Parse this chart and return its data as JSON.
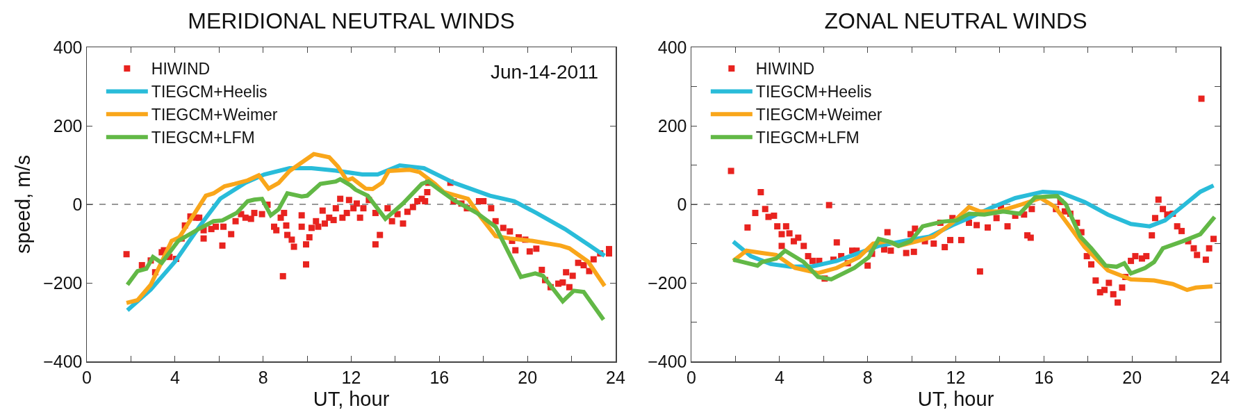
{
  "chart_data": [
    {
      "type": "line",
      "title": "MERIDIONAL NEUTRAL WINDS",
      "xlabel": "UT, hour",
      "ylabel": "speed, m/s",
      "annotations": [
        "Jun-14-2011"
      ],
      "legend": "top left",
      "grid": false,
      "xlim": [
        0,
        24
      ],
      "ylim": [
        -400,
        400
      ],
      "xticks": [
        0,
        {
          "value": 2,
          "label": null
        },
        4,
        {
          "value": 6,
          "label": null
        },
        8,
        {
          "value": 10,
          "label": null
        },
        12,
        {
          "value": 14,
          "label": null
        },
        16,
        {
          "value": 18,
          "label": null
        },
        20,
        {
          "value": 22,
          "label": null
        },
        24
      ],
      "yticks": [
        {
          "value": -400,
          "label": "−400"
        },
        {
          "value": -200,
          "label": "−200"
        },
        0,
        200,
        400
      ],
      "ref_lines": [
        {
          "axis": "y",
          "value": 0,
          "color": "#777777",
          "line_style": "dashed"
        }
      ],
      "series": [
        {
          "name": "HIWIND",
          "type": "scatter",
          "marker": "square",
          "color": "#e8231f",
          "x": [
            1.8,
            2.5,
            2.9,
            3.1,
            3.4,
            3.5,
            3.75,
            4.05,
            4.3,
            4.45,
            4.7,
            4.95,
            5.1,
            5.3,
            5.3,
            5.65,
            5.85,
            6.15,
            6.2,
            6.55,
            6.75,
            7.0,
            7.2,
            7.45,
            7.6,
            7.95,
            8.2,
            8.5,
            8.6,
            8.8,
            8.9,
            8.95,
            9.05,
            9.1,
            9.3,
            9.4,
            9.75,
            9.75,
            9.95,
            9.95,
            10.1,
            10.2,
            10.4,
            10.5,
            10.7,
            10.8,
            11.0,
            11.2,
            11.3,
            11.5,
            11.6,
            11.8,
            11.9,
            12.1,
            12.25,
            12.4,
            12.55,
            12.8,
            13.1,
            13.1,
            13.3,
            13.65,
            13.85,
            14.1,
            14.35,
            14.55,
            14.8,
            15.0,
            15.2,
            15.35,
            15.45,
            15.5,
            16.5,
            16.65,
            17.0,
            17.25,
            17.8,
            18.0,
            18.35,
            18.55,
            18.9,
            19.2,
            19.3,
            19.45,
            19.6,
            19.9,
            20.1,
            20.4,
            20.65,
            20.8,
            21.05,
            21.4,
            21.6,
            21.75,
            21.9,
            22.05,
            22.3,
            22.55,
            22.8,
            23.0,
            23.3,
            23.7,
            23.7
          ],
          "values": [
            -127,
            -155,
            -143,
            -173,
            -122,
            -117,
            -134,
            -139,
            -87,
            -54,
            -31,
            -34,
            -34,
            -87,
            -66,
            -63,
            -57,
            -105,
            -57,
            -76,
            -43,
            -25,
            -34,
            -37,
            -22,
            -25,
            -1,
            -57,
            -66,
            -34,
            -183,
            -22,
            -54,
            -78,
            -90,
            -108,
            -28,
            -57,
            -102,
            -153,
            -84,
            -60,
            -43,
            -57,
            -16,
            -49,
            -34,
            -40,
            -10,
            14,
            -34,
            -22,
            11,
            -10,
            2,
            -34,
            -10,
            11,
            -22,
            -102,
            -78,
            -10,
            -43,
            -25,
            -49,
            -19,
            -7,
            8,
            14,
            8,
            31,
            55,
            55,
            8,
            2,
            -10,
            8,
            8,
            -10,
            -43,
            -60,
            -69,
            -93,
            -117,
            -84,
            -90,
            -120,
            -113,
            -167,
            -193,
            -211,
            -202,
            -199,
            -173,
            -211,
            -182,
            -149,
            -155,
            -170,
            -140,
            -125,
            -114,
            -125
          ]
        },
        {
          "name": "TIEGCM+Heelis",
          "type": "line",
          "color": "#29bcd9",
          "x": [
            1.84,
            2.9,
            4.0,
            5.1,
            6.05,
            7.2,
            8.05,
            9.2,
            10.2,
            11.3,
            12.5,
            13.2,
            14.2,
            15.3,
            16.65,
            18.3,
            19.4,
            20.4,
            21.7,
            22.75,
            23.5
          ],
          "values": [
            -270,
            -217,
            -146,
            -57,
            14,
            55,
            76,
            92,
            92,
            86,
            76,
            76,
            99,
            92,
            55,
            22,
            8,
            -22,
            -63,
            -102,
            -131
          ]
        },
        {
          "name": "TIEGCM+Weimer",
          "type": "line",
          "color": "#f9a61a",
          "x": [
            1.8,
            2.3,
            2.9,
            3.85,
            4.2,
            5.4,
            5.75,
            6.25,
            6.7,
            7.3,
            7.8,
            8.25,
            8.7,
            9.2,
            10.3,
            11.0,
            11.4,
            11.8,
            12.05,
            12.65,
            12.97,
            13.4,
            13.7,
            14.65,
            15.1,
            15.8,
            16.2,
            16.65,
            17.3,
            17.9,
            18.55,
            19.2,
            20.2,
            21.5,
            21.9,
            22.75,
            23.5
          ],
          "values": [
            -251,
            -244,
            -205,
            -93,
            -84,
            22,
            28,
            46,
            52,
            61,
            74,
            40,
            54,
            85,
            128,
            120,
            96,
            61,
            66,
            40,
            39,
            55,
            85,
            88,
            82,
            52,
            31,
            24,
            14,
            -34,
            -81,
            -87,
            -93,
            -105,
            -112,
            -146,
            -208
          ]
        },
        {
          "name": "TIEGCM+LFM",
          "type": "line",
          "color": "#62b846",
          "x": [
            1.84,
            2.3,
            2.7,
            3.0,
            3.4,
            4.15,
            5.1,
            5.75,
            6.15,
            6.8,
            7.3,
            7.6,
            7.95,
            8.35,
            8.7,
            9.1,
            9.75,
            10.0,
            10.6,
            11.3,
            11.5,
            11.95,
            12.2,
            12.75,
            13.55,
            14.35,
            15.2,
            15.5,
            16.0,
            16.65,
            17.7,
            18.55,
            19.7,
            20.35,
            20.7,
            21.6,
            22.1,
            22.55,
            23.45
          ],
          "values": [
            -205,
            -170,
            -164,
            -134,
            -149,
            -93,
            -62,
            -43,
            -41,
            -22,
            8,
            12,
            14,
            -28,
            -13,
            28,
            20,
            22,
            52,
            58,
            64,
            49,
            37,
            22,
            -37,
            2,
            52,
            58,
            37,
            11,
            -22,
            -57,
            -185,
            -176,
            -182,
            -247,
            -220,
            -223,
            -294
          ]
        }
      ]
    },
    {
      "type": "line",
      "title": "ZONAL NEUTRAL WINDS",
      "xlabel": "UT, hour",
      "legend": "top left",
      "grid": false,
      "xlim": [
        0,
        24
      ],
      "ylim": [
        -400,
        400
      ],
      "xticks": [
        0,
        {
          "value": 2,
          "label": null
        },
        4,
        {
          "value": 6,
          "label": null
        },
        8,
        {
          "value": 10,
          "label": null
        },
        12,
        {
          "value": 14,
          "label": null
        },
        16,
        {
          "value": 18,
          "label": null
        },
        20,
        {
          "value": 22,
          "label": null
        },
        24
      ],
      "yticks": [
        {
          "value": -400,
          "label": "−400"
        },
        {
          "value": -300,
          "label": null
        },
        {
          "value": -200,
          "label": "−200"
        },
        {
          "value": -100,
          "label": null
        },
        0,
        {
          "value": 100,
          "label": null
        },
        200,
        {
          "value": 300,
          "label": null
        },
        400
      ],
      "ref_lines": [
        {
          "axis": "y",
          "value": 0,
          "color": "#777777",
          "line_style": "dashed"
        }
      ],
      "series": [
        {
          "name": "HIWIND",
          "type": "scatter",
          "marker": "square",
          "color": "#e8231f",
          "x": [
            1.8,
            2.55,
            2.9,
            3.15,
            3.35,
            3.5,
            3.75,
            3.9,
            4.1,
            4.1,
            4.3,
            4.45,
            4.65,
            4.85,
            5.1,
            5.3,
            5.5,
            5.8,
            6.05,
            6.25,
            6.45,
            6.6,
            6.8,
            7.1,
            7.3,
            7.5,
            8.0,
            8.2,
            8.75,
            8.9,
            9.05,
            9.75,
            9.95,
            10.1,
            10.15,
            10.6,
            11.0,
            11.3,
            11.5,
            11.75,
            11.85,
            12.25,
            12.6,
            12.95,
            13.1,
            13.45,
            13.85,
            14.05,
            14.35,
            14.7,
            15.1,
            15.25,
            15.4,
            15.45,
            16.55,
            16.75,
            16.95,
            17.2,
            17.5,
            17.7,
            17.95,
            18.15,
            18.35,
            18.55,
            18.75,
            18.95,
            19.15,
            19.35,
            19.55,
            19.7,
            19.95,
            20.15,
            20.45,
            20.65,
            20.9,
            21.05,
            21.2,
            21.4,
            21.6,
            21.85,
            22.05,
            22.25,
            22.55,
            22.8,
            22.95,
            23.15,
            23.35,
            23.5,
            23.7
          ],
          "values": [
            85,
            -59,
            -22,
            31,
            -12,
            -32,
            -29,
            -56,
            -76,
            -106,
            -56,
            -74,
            -94,
            -85,
            -106,
            -132,
            -144,
            -144,
            -189,
            -2,
            -141,
            -97,
            -132,
            -150,
            -118,
            -118,
            -156,
            -126,
            -115,
            -71,
            -118,
            -124,
            -76,
            -121,
            -62,
            -94,
            -100,
            -47,
            -109,
            -91,
            -35,
            -91,
            -47,
            -53,
            -171,
            -59,
            -35,
            -6,
            -56,
            -29,
            -26,
            -79,
            -85,
            -12,
            -12,
            6,
            -18,
            -24,
            -47,
            -71,
            -132,
            -153,
            -194,
            -224,
            -218,
            -200,
            -229,
            -250,
            -212,
            -185,
            -144,
            -132,
            -138,
            -132,
            -79,
            -35,
            12,
            -12,
            -26,
            -24,
            -56,
            -68,
            -94,
            -112,
            -129,
            269,
            -141,
            -112,
            -88
          ]
        },
        {
          "name": "TIEGCM+Heelis",
          "type": "line",
          "color": "#29bcd9",
          "x": [
            1.9,
            2.7,
            3.6,
            4.5,
            5.5,
            6.6,
            7.6,
            8.5,
            9.7,
            10.8,
            11.85,
            12.6,
            13.6,
            14.7,
            15.95,
            16.8,
            17.85,
            18.9,
            19.95,
            20.8,
            21.5,
            22.4,
            23.1,
            23.7
          ],
          "values": [
            -95,
            -132,
            -152,
            -159,
            -158,
            -144,
            -124,
            -106,
            -93,
            -82,
            -53,
            -35,
            -9,
            16,
            32,
            29,
            6,
            -26,
            -50,
            -56,
            -41,
            0,
            32,
            48
          ]
        },
        {
          "name": "TIEGCM+Weimer",
          "type": "line",
          "color": "#f9a61a",
          "x": [
            1.9,
            2.5,
            3.2,
            3.85,
            4.7,
            5.75,
            6.6,
            7.6,
            8.25,
            8.9,
            9.4,
            10.25,
            11.0,
            11.85,
            12.6,
            13.1,
            13.95,
            15.0,
            15.85,
            16.5,
            17.2,
            17.85,
            18.9,
            19.95,
            21.0,
            21.85,
            22.5,
            22.9,
            23.65
          ],
          "values": [
            -144,
            -118,
            -124,
            -129,
            -162,
            -175,
            -162,
            -135,
            -100,
            -94,
            -106,
            -94,
            -82,
            -47,
            -7,
            -18,
            -18,
            0,
            16,
            -6,
            -59,
            -109,
            -168,
            -191,
            -194,
            -203,
            -218,
            -212,
            -209
          ]
        },
        {
          "name": "TIEGCM+LFM",
          "type": "line",
          "color": "#62b846",
          "x": [
            1.9,
            2.35,
            3.0,
            3.2,
            3.85,
            4.25,
            5.1,
            5.75,
            6.35,
            7.4,
            8.05,
            8.5,
            9.1,
            9.4,
            9.95,
            10.5,
            11.4,
            12.05,
            12.6,
            13.3,
            14.15,
            14.9,
            15.6,
            16.6,
            17.0,
            17.65,
            18.15,
            18.8,
            19.3,
            19.65,
            19.95,
            20.6,
            21.0,
            21.4,
            22.3,
            23.1,
            23.75
          ],
          "values": [
            -141,
            -147,
            -156,
            -147,
            -138,
            -118,
            -147,
            -185,
            -191,
            -162,
            -135,
            -88,
            -97,
            -106,
            -94,
            -56,
            -44,
            -41,
            -24,
            -26,
            -18,
            -24,
            18,
            21,
            0,
            -82,
            -112,
            -156,
            -159,
            -150,
            -176,
            -162,
            -147,
            -112,
            -94,
            -76,
            -32
          ]
        }
      ]
    }
  ]
}
